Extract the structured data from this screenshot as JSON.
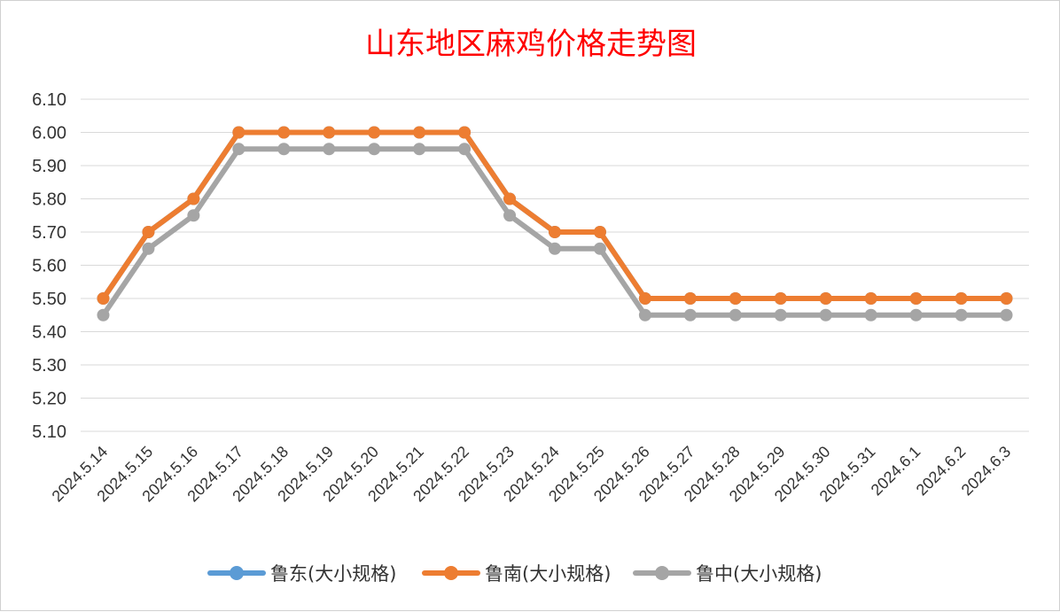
{
  "chart_data": {
    "type": "line",
    "title": "山东地区麻鸡价格走势图",
    "xlabel": "",
    "ylabel": "",
    "ylim": [
      5.1,
      6.1
    ],
    "yticks": [
      "6.10",
      "6.00",
      "5.90",
      "5.80",
      "5.70",
      "5.60",
      "5.50",
      "5.40",
      "5.30",
      "5.20",
      "5.10"
    ],
    "grid": true,
    "legend_position": "bottom",
    "categories": [
      "2024.5.14",
      "2024.5.15",
      "2024.5.16",
      "2024.5.17",
      "2024.5.18",
      "2024.5.19",
      "2024.5.20",
      "2024.5.21",
      "2024.5.22",
      "2024.5.23",
      "2024.5.24",
      "2024.5.25",
      "2024.5.26",
      "2024.5.27",
      "2024.5.28",
      "2024.5.29",
      "2024.5.30",
      "2024.5.31",
      "2024.6.1",
      "2024.6.2",
      "2024.6.3"
    ],
    "series": [
      {
        "name": "鲁东(大小规格)",
        "color": "#5b9bd5",
        "values": [
          5.5,
          5.7,
          5.8,
          6.0,
          6.0,
          6.0,
          6.0,
          6.0,
          6.0,
          5.8,
          5.7,
          5.7,
          5.5,
          5.5,
          5.5,
          5.5,
          5.5,
          5.5,
          5.5,
          5.5,
          5.5
        ]
      },
      {
        "name": "鲁南(大小规格)",
        "color": "#ed7d31",
        "values": [
          5.5,
          5.7,
          5.8,
          6.0,
          6.0,
          6.0,
          6.0,
          6.0,
          6.0,
          5.8,
          5.7,
          5.7,
          5.5,
          5.5,
          5.5,
          5.5,
          5.5,
          5.5,
          5.5,
          5.5,
          5.5
        ]
      },
      {
        "name": "鲁中(大小规格)",
        "color": "#a5a5a5",
        "values": [
          5.45,
          5.65,
          5.75,
          5.95,
          5.95,
          5.95,
          5.95,
          5.95,
          5.95,
          5.75,
          5.65,
          5.65,
          5.45,
          5.45,
          5.45,
          5.45,
          5.45,
          5.45,
          5.45,
          5.45,
          5.45
        ]
      }
    ]
  }
}
